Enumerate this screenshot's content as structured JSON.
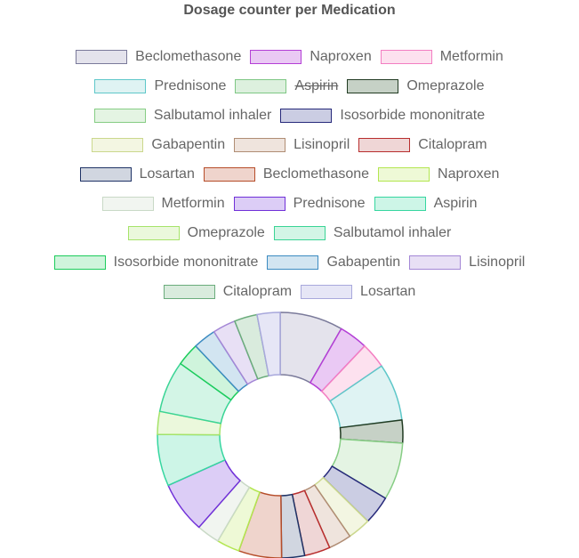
{
  "chart_data": {
    "type": "doughnut",
    "title": "Dosage counter per Medication",
    "legend_position": "top",
    "slices": [
      {
        "label": "Beclomethasone",
        "value": 22,
        "color": "#7a7a9a",
        "fill": "#e4e3ec",
        "hidden": false
      },
      {
        "label": "Naproxen",
        "value": 10,
        "color": "#b43fd6",
        "fill": "#eac9f4",
        "hidden": false
      },
      {
        "label": "Metformin",
        "value": 9,
        "color": "#f37ec2",
        "fill": "#fde1ef",
        "hidden": false
      },
      {
        "label": "Prednisone",
        "value": 20,
        "color": "#5ec7c9",
        "fill": "#dff3f3",
        "hidden": false
      },
      {
        "label": "Aspirin",
        "value": 0,
        "color": "#7ec784",
        "fill": "#ddf0de",
        "hidden": true
      },
      {
        "label": "Omeprazole",
        "value": 8,
        "color": "#213b22",
        "fill": "#c6d1c6",
        "hidden": false
      },
      {
        "label": "Salbutamol inhaler",
        "value": 20,
        "color": "#86cd84",
        "fill": "#e4f4e3",
        "hidden": false
      },
      {
        "label": "Isosorbide mononitrate",
        "value": 10,
        "color": "#26297a",
        "fill": "#cbcde3",
        "hidden": false
      },
      {
        "label": "Gabapentin",
        "value": 8,
        "color": "#cbd88d",
        "fill": "#f3f6e2",
        "hidden": false
      },
      {
        "label": "Lisinopril",
        "value": 8,
        "color": "#b08d74",
        "fill": "#efe4dd",
        "hidden": false
      },
      {
        "label": "Citalopram",
        "value": 9,
        "color": "#b82e2e",
        "fill": "#efd6d6",
        "hidden": false
      },
      {
        "label": "Losartan",
        "value": 8,
        "color": "#1f3366",
        "fill": "#d1d6e0",
        "hidden": false
      },
      {
        "label": "Beclomethasone",
        "value": 15,
        "color": "#b64d2a",
        "fill": "#efd4cc",
        "hidden": false
      },
      {
        "label": "Naproxen",
        "value": 8,
        "color": "#b3e650",
        "fill": "#eef9d6",
        "hidden": false
      },
      {
        "label": "Metformin",
        "value": 8,
        "color": "#c9d9c6",
        "fill": "#f1f5f0",
        "hidden": false
      },
      {
        "label": "Prednisone",
        "value": 18,
        "color": "#7030d8",
        "fill": "#dccdf6",
        "hidden": false
      },
      {
        "label": "Aspirin",
        "value": 18,
        "color": "#36d6a0",
        "fill": "#cdf5e7",
        "hidden": false
      },
      {
        "label": "Omeprazole",
        "value": 8,
        "color": "#a6e36a",
        "fill": "#ebf8dc",
        "hidden": false
      },
      {
        "label": "Salbutamol inhaler",
        "value": 18,
        "color": "#3ad495",
        "fill": "#d3f5e6",
        "hidden": false
      },
      {
        "label": "Isosorbide mononitrate",
        "value": 8,
        "color": "#1ccc5c",
        "fill": "#cff4dc",
        "hidden": false
      },
      {
        "label": "Gabapentin",
        "value": 8,
        "color": "#3c8bc1",
        "fill": "#d2e5f1",
        "hidden": false
      },
      {
        "label": "Lisinopril",
        "value": 8,
        "color": "#a487d6",
        "fill": "#e8e0f5",
        "hidden": false
      },
      {
        "label": "Citalopram",
        "value": 8,
        "color": "#6bac7c",
        "fill": "#d9ebdd",
        "hidden": false
      },
      {
        "label": "Losartan",
        "value": 8,
        "color": "#a8a8dc",
        "fill": "#e6e6f6",
        "hidden": false
      }
    ]
  }
}
